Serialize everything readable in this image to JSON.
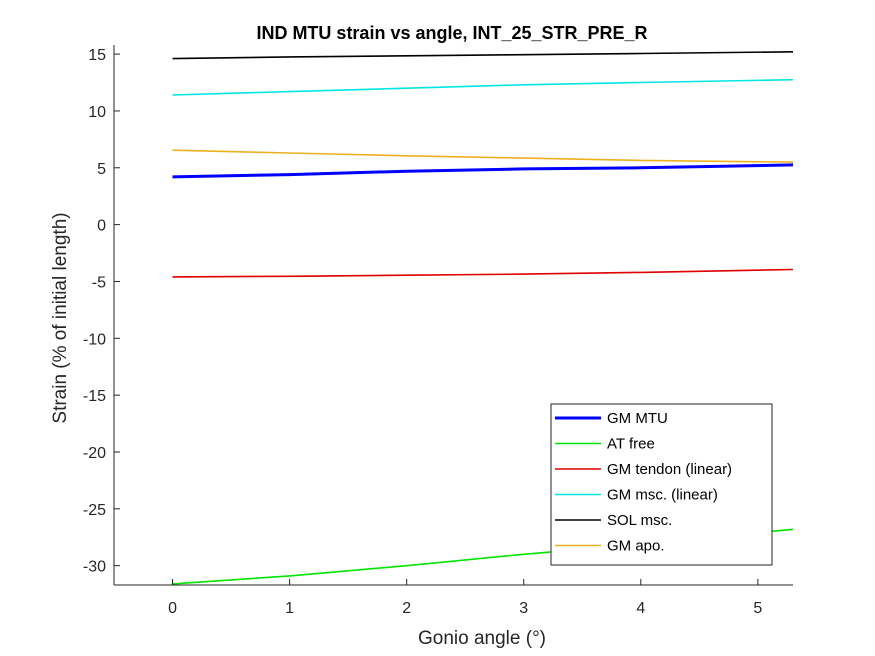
{
  "chart_data": {
    "type": "line",
    "title": "IND MTU strain vs angle, INT_25_STR_PRE_R",
    "xlabel": "Gonio angle (°)",
    "ylabel": "Strain (% of initial length)",
    "xlim": [
      -0.5,
      5.3
    ],
    "ylim": [
      -31.7,
      15.8
    ],
    "xticks": [
      0,
      1,
      2,
      3,
      4,
      5
    ],
    "yticks": [
      -30,
      -25,
      -20,
      -15,
      -10,
      -5,
      0,
      5,
      10,
      15
    ],
    "grid": false,
    "legend_position": "bottom-right",
    "series": [
      {
        "name": "GM MTU",
        "color": "#0000ff",
        "width": 3,
        "x": [
          0,
          1,
          2,
          3,
          4,
          5.3
        ],
        "y": [
          4.2,
          4.4,
          4.7,
          4.9,
          5.0,
          5.25
        ]
      },
      {
        "name": "AT free",
        "color": "#00e600",
        "width": 1.6,
        "x": [
          0,
          1,
          2,
          3,
          4,
          5.3
        ],
        "y": [
          -31.6,
          -30.9,
          -30.0,
          -29.0,
          -28.1,
          -26.8
        ]
      },
      {
        "name": "GM tendon (linear)",
        "color": "#e00000",
        "width": 1.6,
        "x": [
          0,
          1,
          2,
          3,
          4,
          5.3
        ],
        "y": [
          -4.6,
          -4.55,
          -4.45,
          -4.35,
          -4.2,
          -3.95
        ]
      },
      {
        "name": "GM msc. (linear)",
        "color": "#00e6e6",
        "width": 1.6,
        "x": [
          0,
          1,
          2,
          3,
          4,
          5.3
        ],
        "y": [
          11.4,
          11.7,
          12.0,
          12.3,
          12.5,
          12.75
        ]
      },
      {
        "name": "SOL msc.",
        "color": "#000000",
        "width": 1.6,
        "x": [
          0,
          1,
          2,
          3,
          4,
          5.3
        ],
        "y": [
          14.6,
          14.75,
          14.85,
          14.95,
          15.05,
          15.2
        ]
      },
      {
        "name": "GM apo.",
        "color": "#edb120",
        "width": 1.6,
        "x": [
          0,
          1,
          2,
          3,
          4,
          5.3
        ],
        "y": [
          6.55,
          6.3,
          6.05,
          5.85,
          5.65,
          5.5
        ]
      }
    ]
  }
}
